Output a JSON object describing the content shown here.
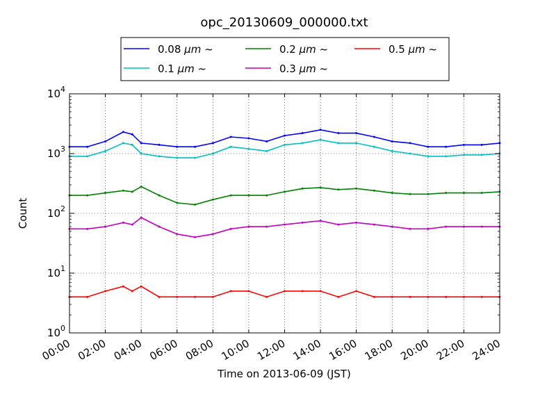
{
  "chart_data": {
    "type": "line",
    "title": "opc_20130609_000000.txt",
    "xlabel": "Time on 2013-06-09 (JST)",
    "ylabel": "Count",
    "x_unit": "hours",
    "xlim": [
      0,
      24
    ],
    "ylim": [
      1,
      10000
    ],
    "y_scale": "log",
    "grid": true,
    "legend_position": "top-center, above plot",
    "x_ticks": [
      "00:00",
      "02:00",
      "04:00",
      "06:00",
      "08:00",
      "10:00",
      "12:00",
      "14:00",
      "16:00",
      "18:00",
      "20:00",
      "22:00",
      "24:00"
    ],
    "y_ticks": [
      {
        "base": "10",
        "exp": "0"
      },
      {
        "base": "10",
        "exp": "1"
      },
      {
        "base": "10",
        "exp": "2"
      },
      {
        "base": "10",
        "exp": "3"
      },
      {
        "base": "10",
        "exp": "4"
      }
    ],
    "x": [
      0,
      1,
      2,
      3,
      3.5,
      4,
      5,
      6,
      7,
      8,
      9,
      10,
      11,
      12,
      13,
      14,
      15,
      16,
      17,
      18,
      19,
      20,
      21,
      22,
      23,
      24
    ],
    "series": [
      {
        "name": "0.08",
        "unit": "μm",
        "suffix": "~",
        "color": "#0000ff",
        "values": [
          1300,
          1300,
          1600,
          2300,
          2100,
          1500,
          1400,
          1300,
          1300,
          1500,
          1900,
          1800,
          1600,
          2000,
          2200,
          2500,
          2200,
          2200,
          1900,
          1600,
          1500,
          1300,
          1300,
          1400,
          1400,
          1500
        ]
      },
      {
        "name": "0.1",
        "unit": "μm",
        "suffix": "~",
        "color": "#00bfbf",
        "values": [
          900,
          900,
          1100,
          1500,
          1400,
          1000,
          900,
          850,
          850,
          1000,
          1300,
          1200,
          1100,
          1400,
          1500,
          1700,
          1500,
          1500,
          1300,
          1100,
          1000,
          900,
          900,
          950,
          950,
          1000
        ]
      },
      {
        "name": "0.2",
        "unit": "μm",
        "suffix": "~",
        "color": "#008000",
        "values": [
          200,
          200,
          220,
          240,
          230,
          280,
          200,
          150,
          140,
          170,
          200,
          200,
          200,
          230,
          260,
          270,
          250,
          260,
          240,
          220,
          210,
          210,
          220,
          220,
          220,
          230
        ]
      },
      {
        "name": "0.3",
        "unit": "μm",
        "suffix": "~",
        "color": "#bf00bf",
        "values": [
          55,
          55,
          60,
          70,
          65,
          85,
          60,
          45,
          40,
          45,
          55,
          60,
          60,
          65,
          70,
          75,
          65,
          70,
          65,
          60,
          55,
          55,
          60,
          60,
          60,
          60
        ]
      },
      {
        "name": "0.5",
        "unit": "μm",
        "suffix": "~",
        "color": "#ff0000",
        "values": [
          4,
          4,
          5,
          6,
          5,
          6,
          4,
          4,
          4,
          4,
          5,
          5,
          4,
          5,
          5,
          5,
          4,
          5,
          4,
          4,
          4,
          4,
          4,
          4,
          4,
          4
        ]
      }
    ]
  }
}
